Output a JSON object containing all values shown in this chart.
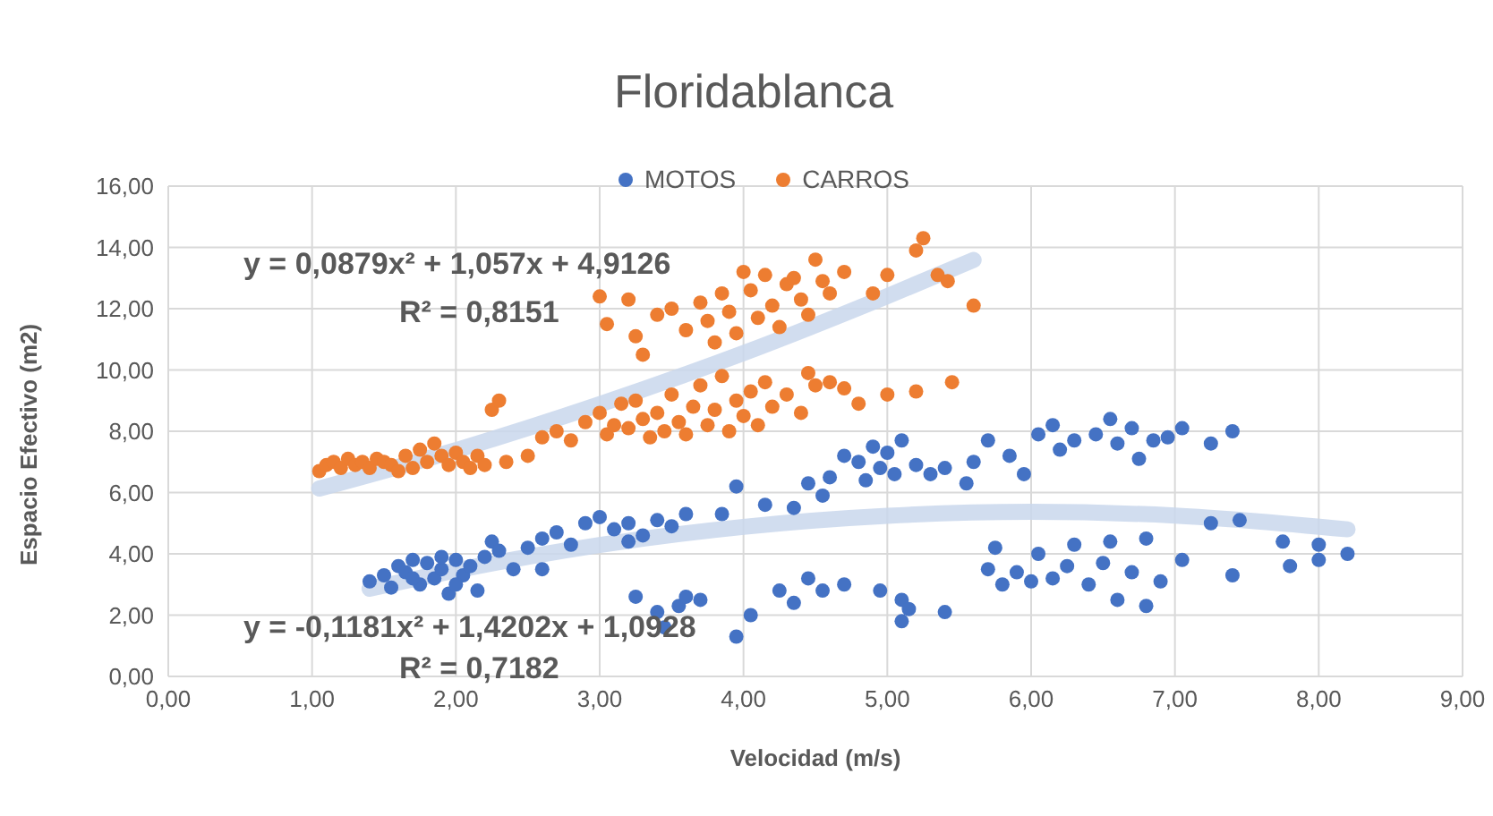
{
  "chart_data": {
    "type": "scatter",
    "title": "Floridablanca",
    "xlabel": "Velocidad (m/s)",
    "ylabel": "Espacio Efectivo (m2)",
    "xlim": [
      0,
      9
    ],
    "xticks": [
      {
        "value": 0,
        "label": "0,00"
      },
      {
        "value": 1,
        "label": "1,00"
      },
      {
        "value": 2,
        "label": "2,00"
      },
      {
        "value": 3,
        "label": "3,00"
      },
      {
        "value": 4,
        "label": "4,00"
      },
      {
        "value": 5,
        "label": "5,00"
      },
      {
        "value": 6,
        "label": "6,00"
      },
      {
        "value": 7,
        "label": "7,00"
      },
      {
        "value": 8,
        "label": "8,00"
      },
      {
        "value": 9,
        "label": "9,00"
      }
    ],
    "ylim": [
      0,
      16
    ],
    "yticks": [
      {
        "value": 0,
        "label": "0,00"
      },
      {
        "value": 2,
        "label": "2,00"
      },
      {
        "value": 4,
        "label": "4,00"
      },
      {
        "value": 6,
        "label": "6,00"
      },
      {
        "value": 8,
        "label": "8,00"
      },
      {
        "value": 10,
        "label": "10,00"
      },
      {
        "value": 12,
        "label": "12,00"
      },
      {
        "value": 14,
        "label": "14,00"
      },
      {
        "value": 16,
        "label": "16,00"
      }
    ],
    "grid": true,
    "legend": "top",
    "marker": "circle",
    "annotations": [
      "y = 0,0879x² + 1,057x + 4,9126",
      "R² = 0,8151",
      "y = -0,1181x² + 1,4202x + 1,0928",
      "R² = 0,7182"
    ],
    "series": [
      {
        "type": "line",
        "color": "#c9d7ec",
        "marker": "none",
        "x": [
          1.05,
          2,
          3,
          4,
          5,
          5.6
        ],
        "values": [
          6.13,
          7.38,
          8.88,
          10.55,
          12.41,
          13.59
        ]
      },
      {
        "type": "line",
        "color": "#c9d7ec",
        "marker": "none",
        "x": [
          1.4,
          2,
          3,
          4,
          5,
          6,
          7,
          8.2
        ],
        "values": [
          2.86,
          3.46,
          4.29,
          4.88,
          5.24,
          5.37,
          5.25,
          4.8
        ]
      },
      {
        "name": "MOTOS",
        "color": "#4472c4",
        "x": [
          1.4,
          1.5,
          1.55,
          1.6,
          1.65,
          1.7,
          1.75,
          1.8,
          1.85,
          1.9,
          1.95,
          2.0,
          2.05,
          2.1,
          2.15,
          2.2,
          2.25,
          2.3,
          1.7,
          1.9,
          2.0,
          2.4,
          2.5,
          2.6,
          2.7,
          2.8,
          2.9,
          3.0,
          3.1,
          3.2,
          3.3,
          3.4,
          3.5,
          3.6,
          2.6,
          3.2,
          3.25,
          3.4,
          3.45,
          3.55,
          3.6,
          3.7,
          3.95,
          4.05,
          4.25,
          4.35,
          4.45,
          4.55,
          4.7,
          4.95,
          5.1,
          5.1,
          5.15,
          5.4,
          3.85,
          3.95,
          4.15,
          4.35,
          4.45,
          4.55,
          4.6,
          4.7,
          4.8,
          4.85,
          4.9,
          4.95,
          5.0,
          5.05,
          5.1,
          5.2,
          5.3,
          5.4,
          5.55,
          5.6,
          5.7,
          5.85,
          5.95,
          6.05,
          6.15,
          6.2,
          6.3,
          6.45,
          6.55,
          6.6,
          6.7,
          6.75,
          6.85,
          6.95,
          7.05,
          7.25,
          7.4,
          5.7,
          5.75,
          5.8,
          5.9,
          6.0,
          6.05,
          6.15,
          6.25,
          6.3,
          6.4,
          6.5,
          6.55,
          6.6,
          6.7,
          6.8,
          6.8,
          6.9,
          7.05,
          7.25,
          7.4,
          7.45,
          7.75,
          7.8,
          8.0,
          8.0,
          8.2
        ],
        "values": [
          3.1,
          3.3,
          2.9,
          3.6,
          3.4,
          3.8,
          3.0,
          3.7,
          3.2,
          3.5,
          2.7,
          3.8,
          3.3,
          3.6,
          2.8,
          3.9,
          4.4,
          4.1,
          3.2,
          3.9,
          3.0,
          3.5,
          4.2,
          4.5,
          4.7,
          4.3,
          5.0,
          5.2,
          4.8,
          5.0,
          4.6,
          5.1,
          4.9,
          5.3,
          3.5,
          4.4,
          2.6,
          2.1,
          1.6,
          2.3,
          2.6,
          2.5,
          1.3,
          2.0,
          2.8,
          2.4,
          3.2,
          2.8,
          3.0,
          2.8,
          2.5,
          1.8,
          2.2,
          2.1,
          5.3,
          6.2,
          5.6,
          5.5,
          6.3,
          5.9,
          6.5,
          7.2,
          7.0,
          6.4,
          7.5,
          6.8,
          7.3,
          6.6,
          7.7,
          6.9,
          6.6,
          6.8,
          6.3,
          7.0,
          7.7,
          7.2,
          6.6,
          7.9,
          8.2,
          7.4,
          7.7,
          7.9,
          8.4,
          7.6,
          8.1,
          7.1,
          7.7,
          7.8,
          8.1,
          7.6,
          8.0,
          3.5,
          4.2,
          3.0,
          3.4,
          3.1,
          4.0,
          3.2,
          3.6,
          4.3,
          3.0,
          3.7,
          4.4,
          2.5,
          3.4,
          4.5,
          2.3,
          3.1,
          3.8,
          5.0,
          3.3,
          5.1,
          4.4,
          3.6,
          3.8,
          4.3,
          4.0
        ]
      },
      {
        "name": "CARROS",
        "color": "#ed7d31",
        "x": [
          1.05,
          1.1,
          1.15,
          1.2,
          1.25,
          1.3,
          1.35,
          1.4,
          1.45,
          1.5,
          1.55,
          1.6,
          1.65,
          1.7,
          1.75,
          1.8,
          1.85,
          1.9,
          1.95,
          2.0,
          2.05,
          2.1,
          2.15,
          2.2,
          2.25,
          2.3,
          2.35,
          2.5,
          2.6,
          2.7,
          2.8,
          2.9,
          3.0,
          3.05,
          3.1,
          3.15,
          3.2,
          3.25,
          3.3,
          3.35,
          3.4,
          3.45,
          3.5,
          3.55,
          3.6,
          3.65,
          3.7,
          3.75,
          3.8,
          3.85,
          3.9,
          3.95,
          4.0,
          4.05,
          4.1,
          4.15,
          4.2,
          4.3,
          4.4,
          4.45,
          4.5,
          4.6,
          4.7,
          4.8,
          5.0,
          5.2,
          5.45,
          3.0,
          3.05,
          3.2,
          3.25,
          3.3,
          3.4,
          3.5,
          3.6,
          3.7,
          3.75,
          3.8,
          3.85,
          3.9,
          3.95,
          4.0,
          4.05,
          4.1,
          4.15,
          4.2,
          4.25,
          4.3,
          4.35,
          4.4,
          4.45,
          4.5,
          4.55,
          4.6,
          4.7,
          4.9,
          5.0,
          5.2,
          5.25,
          5.35,
          5.42,
          5.6
        ],
        "values": [
          6.7,
          6.9,
          7.0,
          6.8,
          7.1,
          6.9,
          7.0,
          6.8,
          7.1,
          7.0,
          6.9,
          6.7,
          7.2,
          6.8,
          7.4,
          7.0,
          7.6,
          7.2,
          6.9,
          7.3,
          7.0,
          6.8,
          7.2,
          6.9,
          8.7,
          9.0,
          7.0,
          7.2,
          7.8,
          8.0,
          7.7,
          8.3,
          8.6,
          7.9,
          8.2,
          8.9,
          8.1,
          9.0,
          8.4,
          7.8,
          8.6,
          8.0,
          9.2,
          8.3,
          7.9,
          8.8,
          9.5,
          8.2,
          8.7,
          9.8,
          8.0,
          9.0,
          8.5,
          9.3,
          8.2,
          9.6,
          8.8,
          9.2,
          8.6,
          9.9,
          9.5,
          9.6,
          9.4,
          8.9,
          9.2,
          9.3,
          9.6,
          12.4,
          11.5,
          12.3,
          11.1,
          10.5,
          11.8,
          12.0,
          11.3,
          12.2,
          11.6,
          10.9,
          12.5,
          11.9,
          11.2,
          13.2,
          12.6,
          11.7,
          13.1,
          12.1,
          11.4,
          12.8,
          13.0,
          12.3,
          11.8,
          13.6,
          12.9,
          12.5,
          13.2,
          12.5,
          13.1,
          13.9,
          14.3,
          13.1,
          12.9,
          12.1
        ]
      }
    ]
  }
}
